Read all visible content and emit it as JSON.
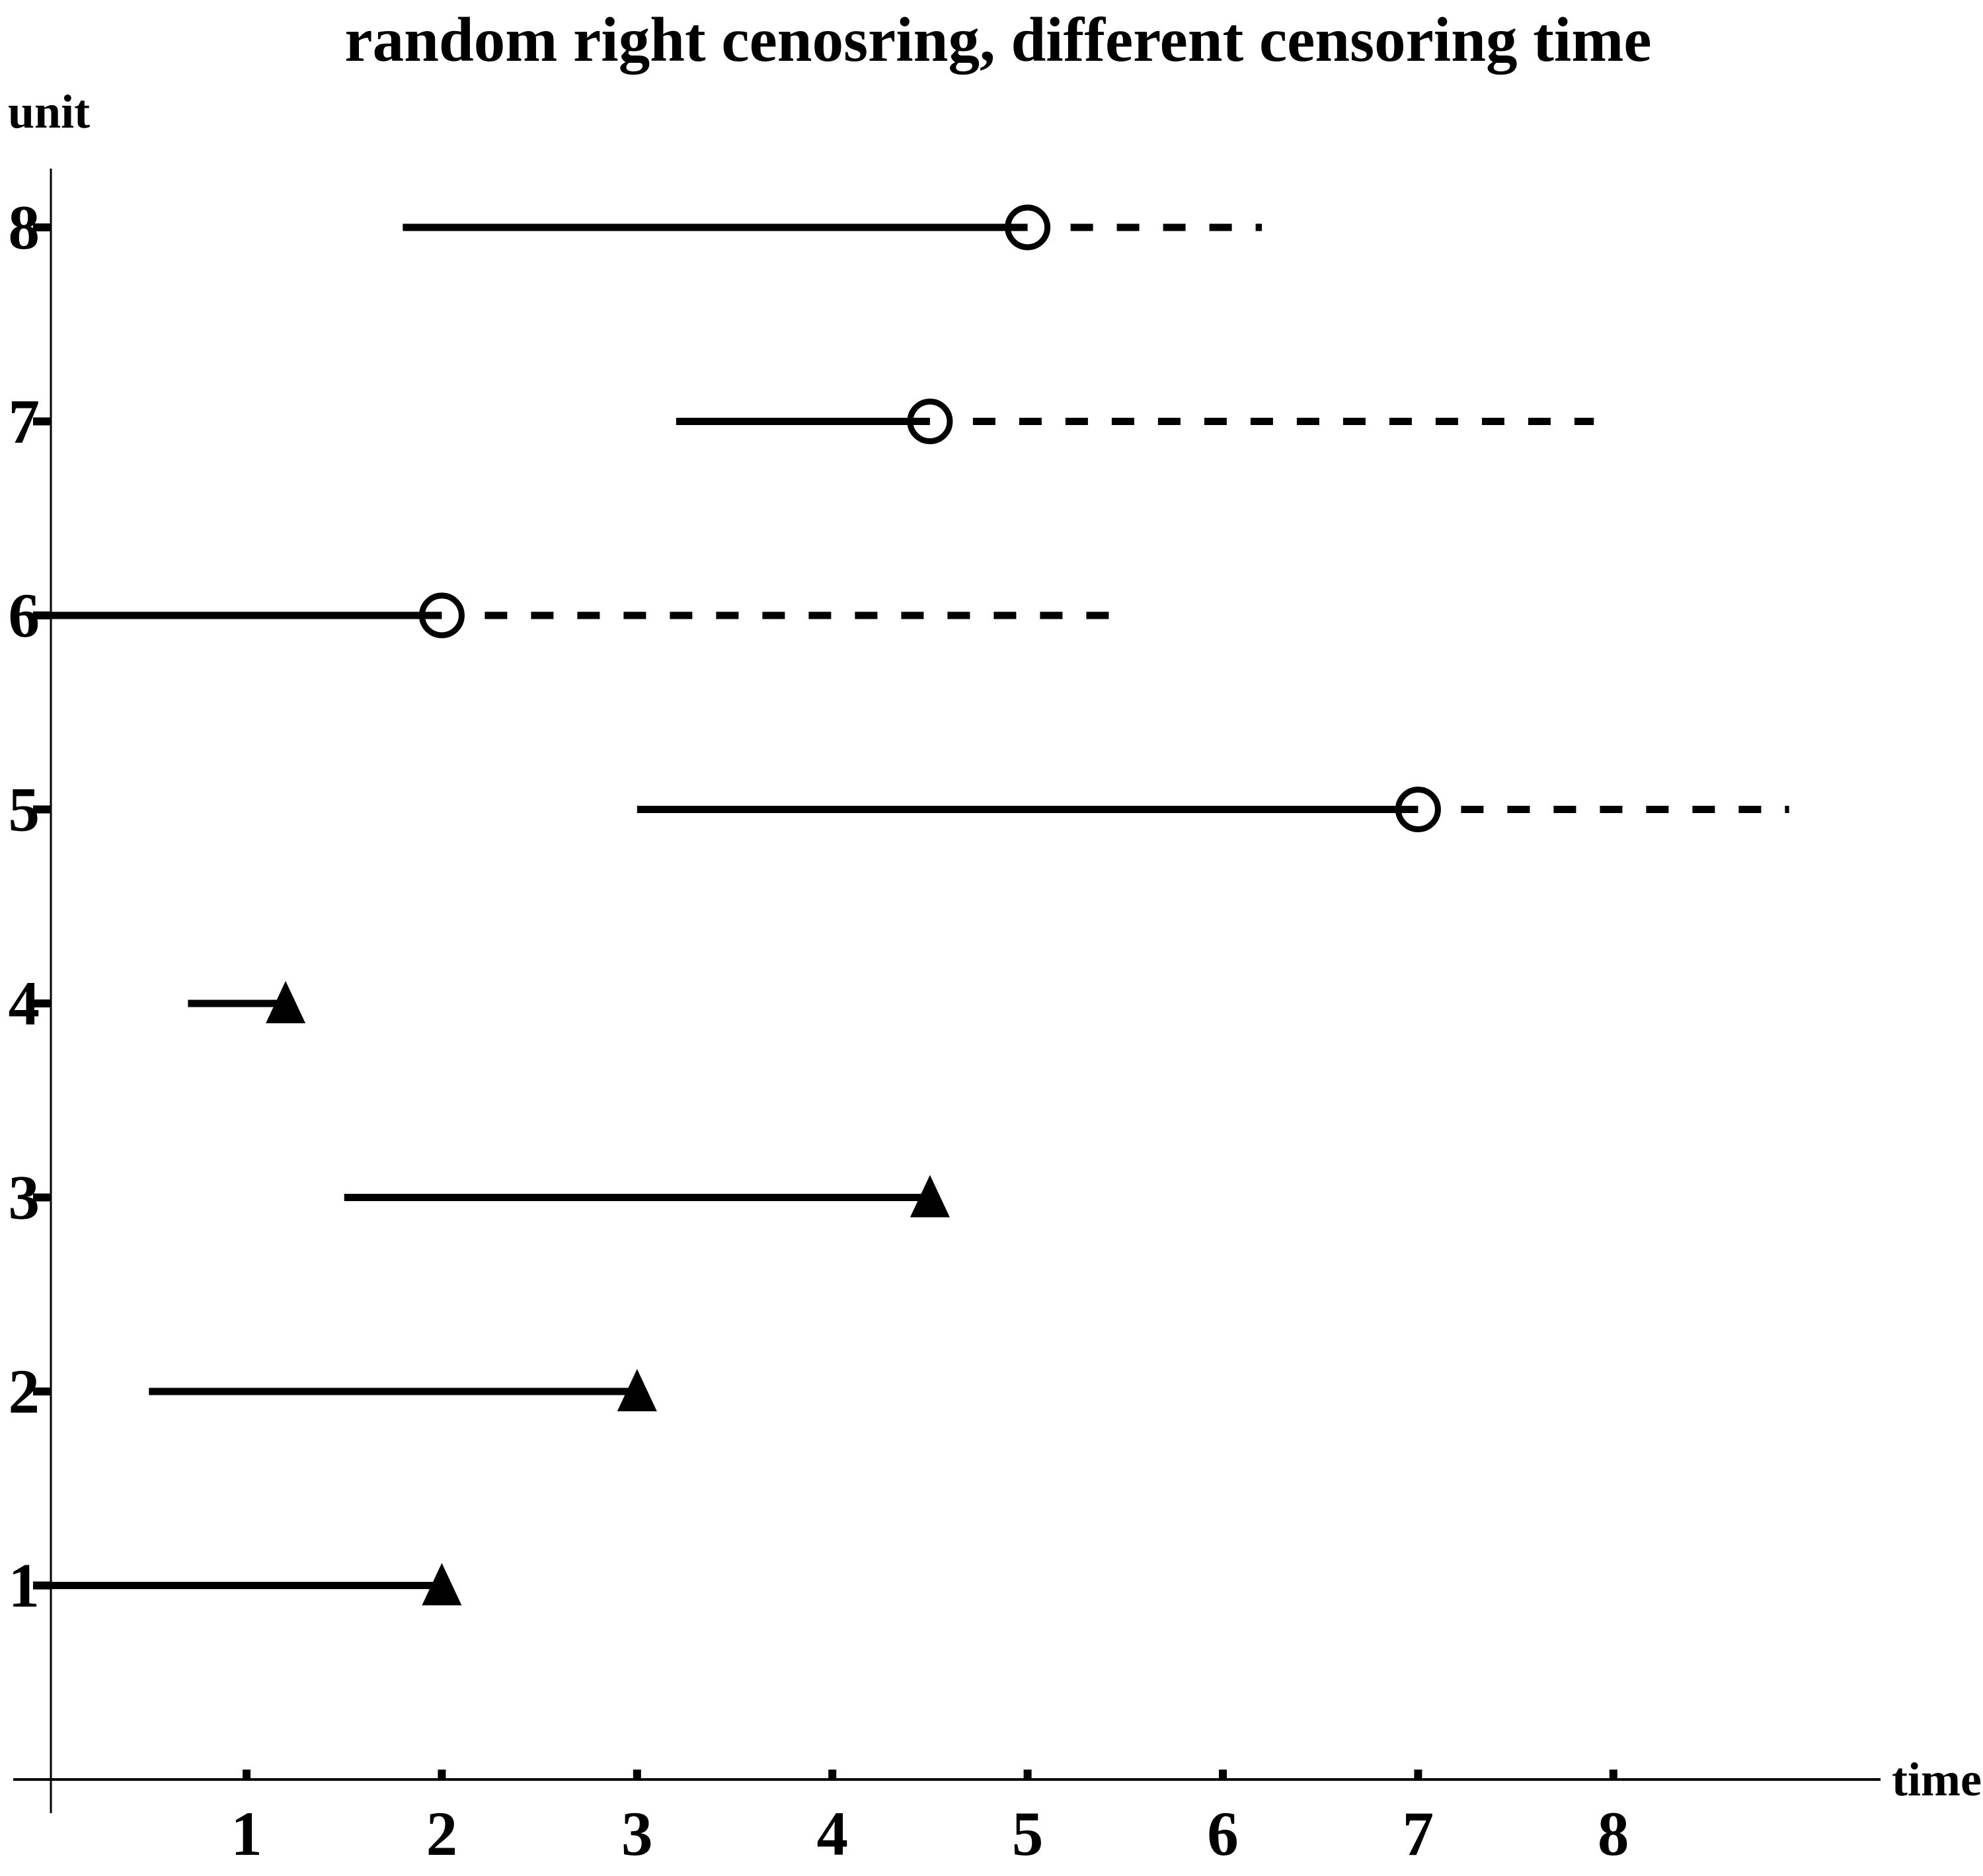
{
  "title": "random right cenosring, different censoring time",
  "y_axis_label": "unit",
  "x_axis_label": "time",
  "colors": {
    "foreground": "#000000",
    "background": "#ffffff"
  },
  "chart_data": {
    "type": "line",
    "subtype": "right-censoring-event-timeline",
    "title": "random right cenosring, different censoring time",
    "xlabel": "time",
    "ylabel": "unit",
    "xlim": [
      0,
      9.4
    ],
    "ylim": [
      0,
      8.5
    ],
    "grid": false,
    "legend": "none",
    "x_ticks": [
      1,
      2,
      3,
      4,
      5,
      6,
      7,
      8
    ],
    "y_ticks": [
      1,
      2,
      3,
      4,
      5,
      6,
      7,
      8
    ],
    "event_marker": "filled-triangle-icon",
    "censor_marker": "open-circle-icon",
    "unobserved_style": "dashed-line",
    "units": [
      {
        "unit": 1,
        "start": 0.0,
        "end": 2.0,
        "status": "event"
      },
      {
        "unit": 2,
        "start": 0.5,
        "end": 3.0,
        "status": "event"
      },
      {
        "unit": 3,
        "start": 1.5,
        "end": 4.5,
        "status": "event"
      },
      {
        "unit": 4,
        "start": 0.7,
        "end": 1.2,
        "status": "event"
      },
      {
        "unit": 5,
        "start": 3.0,
        "end": 7.0,
        "status": "censored",
        "dashed_until": 8.9
      },
      {
        "unit": 6,
        "start": 0.0,
        "end": 2.0,
        "status": "censored",
        "dashed_until": 5.5
      },
      {
        "unit": 7,
        "start": 3.2,
        "end": 4.5,
        "status": "censored",
        "dashed_until": 7.9
      },
      {
        "unit": 8,
        "start": 1.8,
        "end": 5.0,
        "status": "censored",
        "dashed_until": 6.2
      }
    ]
  }
}
